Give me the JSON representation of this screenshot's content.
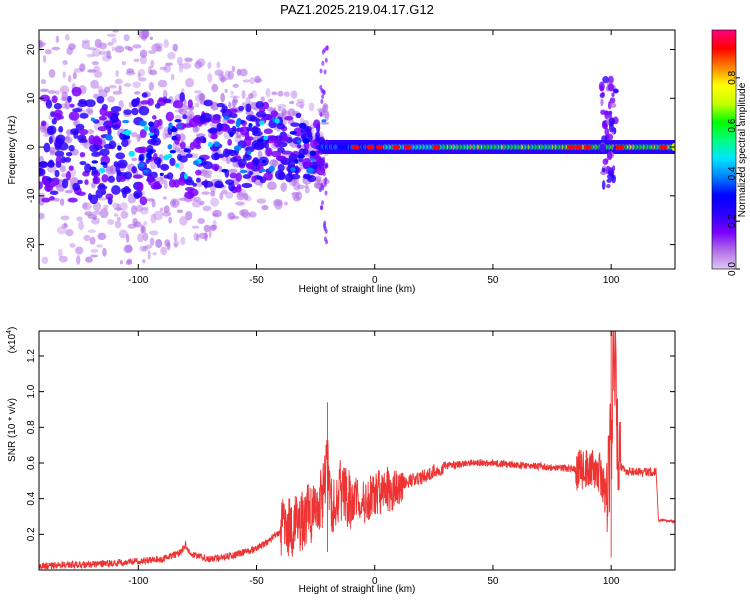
{
  "figure_title": "PAZ1.2025.219.04.17.G12",
  "chart_data": [
    {
      "type": "heatmap",
      "xlabel": "Height of straight line (km)",
      "ylabel": "Frequency (Hz)",
      "xlim": [
        -142,
        127
      ],
      "ylim": [
        -25,
        24
      ],
      "xticks": [
        -100,
        -50,
        0,
        50,
        100
      ],
      "yticks": [
        -20,
        -10,
        0,
        10,
        20
      ],
      "colorbar": {
        "label": "Normalized spectral amplitude",
        "range": [
          0,
          1
        ],
        "ticks": [
          0.0,
          0.2,
          0.4,
          0.6,
          0.8
        ],
        "colors": [
          "#e2c8f2",
          "#b06ee8",
          "#7a00ff",
          "#2a00ff",
          "#0000ff",
          "#0080ff",
          "#00e5ff",
          "#00ff80",
          "#00ff00",
          "#c8ff00",
          "#ffff00",
          "#ff8000",
          "#ff0000",
          "#ff0080"
        ]
      },
      "features": [
        {
          "x_range": [
            -142,
            -22
          ],
          "y_range": [
            -24,
            24
          ],
          "amplitude": 0.2,
          "description": "scattered blobs"
        },
        {
          "x_range": [
            -22,
            127
          ],
          "y_center": 0,
          "amplitude": 0.65,
          "description": "narrow band near 0 Hz"
        },
        {
          "x_range": [
            96,
            102
          ],
          "y_range": [
            -8,
            14
          ],
          "amplitude": 0.3,
          "description": "vertical spread at ~100 km"
        }
      ]
    },
    {
      "type": "line",
      "xlabel": "Height of straight line (km)",
      "ylabel": "SNR (10 * v/v)",
      "y_multiplier": "(x10",
      "y_multiplier_exp": "4",
      "xlim": [
        -142,
        127
      ],
      "ylim": [
        0.0,
        1.34
      ],
      "xticks": [
        -100,
        -50,
        0,
        50,
        100
      ],
      "yticks": [
        0.2,
        0.4,
        0.6,
        0.8,
        1.0,
        1.2
      ],
      "color": "#ee3333",
      "series": [
        {
          "x": [
            -142,
            -130,
            -120,
            -110,
            -100,
            -90,
            -82,
            -80,
            -78,
            -70,
            -60,
            -50,
            -45,
            -40,
            -35,
            -30,
            -25,
            -22,
            -20,
            -18,
            -15,
            -10,
            -5,
            0,
            5,
            10,
            15,
            20,
            25,
            30,
            40,
            50,
            60,
            70,
            80,
            90,
            95,
            98,
            100,
            101,
            103,
            106,
            110,
            115,
            119,
            120,
            127
          ],
          "y": [
            0.02,
            0.03,
            0.03,
            0.04,
            0.05,
            0.06,
            0.1,
            0.14,
            0.09,
            0.06,
            0.08,
            0.12,
            0.16,
            0.22,
            0.25,
            0.28,
            0.35,
            0.4,
            0.6,
            0.35,
            0.45,
            0.4,
            0.38,
            0.42,
            0.45,
            0.47,
            0.5,
            0.52,
            0.55,
            0.58,
            0.6,
            0.6,
            0.59,
            0.58,
            0.57,
            0.56,
            0.55,
            0.4,
            0.7,
            1.3,
            0.6,
            0.55,
            0.55,
            0.55,
            0.55,
            0.28,
            0.27
          ]
        }
      ],
      "spikes": [
        {
          "x": -20,
          "min": 0.1,
          "max": 0.94
        },
        {
          "x": 100,
          "min": 0.07,
          "max": 1.34
        }
      ]
    }
  ]
}
